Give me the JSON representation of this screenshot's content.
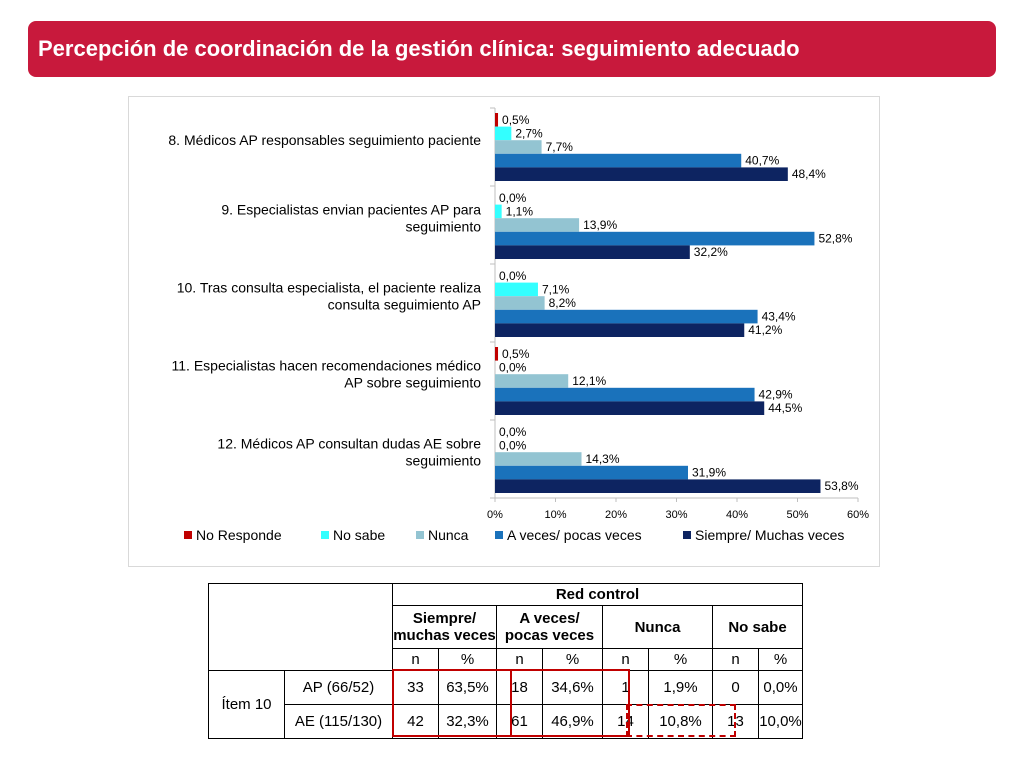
{
  "header": {
    "title": "Percepción de coordinación de la gestión clínica: seguimiento adecuado"
  },
  "chart_data": {
    "type": "bar",
    "orientation": "horizontal",
    "categories": [
      [
        "8. Médicos AP responsables seguimiento paciente"
      ],
      [
        "9. Especialistas envian pacientes AP para",
        "seguimiento"
      ],
      [
        "10. Tras consulta especialista, el paciente realiza",
        "consulta seguimiento  AP"
      ],
      [
        "11. Especialistas hacen recomendaciones médico",
        "AP sobre seguimiento"
      ],
      [
        "12. Médicos AP consultan dudas AE   sobre",
        "seguimiento"
      ]
    ],
    "series": [
      {
        "name": "No Responde",
        "color": "#c00000",
        "values": [
          0.5,
          0.0,
          0.0,
          0.5,
          0.0
        ],
        "labels": [
          "0,5%",
          "0,0%",
          "0,0%",
          "0,5%",
          "0,0%"
        ]
      },
      {
        "name": "No sabe",
        "color": "#33ffff",
        "values": [
          2.7,
          1.1,
          7.1,
          0.0,
          0.0
        ],
        "labels": [
          "2,7%",
          "1,1%",
          "7,1%",
          "0,0%",
          "0,0%"
        ]
      },
      {
        "name": "Nunca",
        "color": "#93c4d2",
        "values": [
          7.7,
          13.9,
          8.2,
          12.1,
          14.3
        ],
        "labels": [
          "7,7%",
          "13,9%",
          "8,2%",
          "12,1%",
          "14,3%"
        ]
      },
      {
        "name": "A veces/ pocas veces",
        "color": "#1a72bb",
        "values": [
          40.7,
          52.8,
          43.4,
          42.9,
          31.9
        ],
        "labels": [
          "40,7%",
          "52,8%",
          "43,4%",
          "42,9%",
          "31,9%"
        ]
      },
      {
        "name": "Siempre/ Muchas veces",
        "color": "#0d2461",
        "values": [
          48.4,
          32.2,
          41.2,
          44.5,
          53.8
        ],
        "labels": [
          "48,4%",
          "32,2%",
          "41,2%",
          "44,5%",
          "53,8%"
        ]
      }
    ],
    "xlim": [
      0,
      60
    ],
    "ticks": [
      0,
      10,
      20,
      30,
      40,
      50,
      60
    ],
    "tick_labels": [
      "0%",
      "10%",
      "20%",
      "30%",
      "40%",
      "50%",
      "60%"
    ],
    "legend_position": "bottom",
    "grid": false
  },
  "table": {
    "group_header": "Red control",
    "col_headers": [
      [
        "Siempre/",
        "muchas veces"
      ],
      [
        "A veces/",
        "pocas veces"
      ],
      [
        "Nunca"
      ],
      [
        "No sabe"
      ]
    ],
    "sub_headers": [
      "n",
      "%",
      "n",
      "%",
      "n",
      "%",
      "n",
      "%"
    ],
    "item_label": "Ítem 10",
    "rows": [
      {
        "label": "AP (66/52)",
        "cells": [
          "33",
          "63,5%",
          "18",
          "34,6%",
          "1",
          "1,9%",
          "0",
          "0,0%"
        ]
      },
      {
        "label": "AE (115/130)",
        "cells": [
          "42",
          "32,3%",
          "61",
          "46,9%",
          "14",
          "10,8%",
          "13",
          "10,0%"
        ]
      }
    ]
  }
}
